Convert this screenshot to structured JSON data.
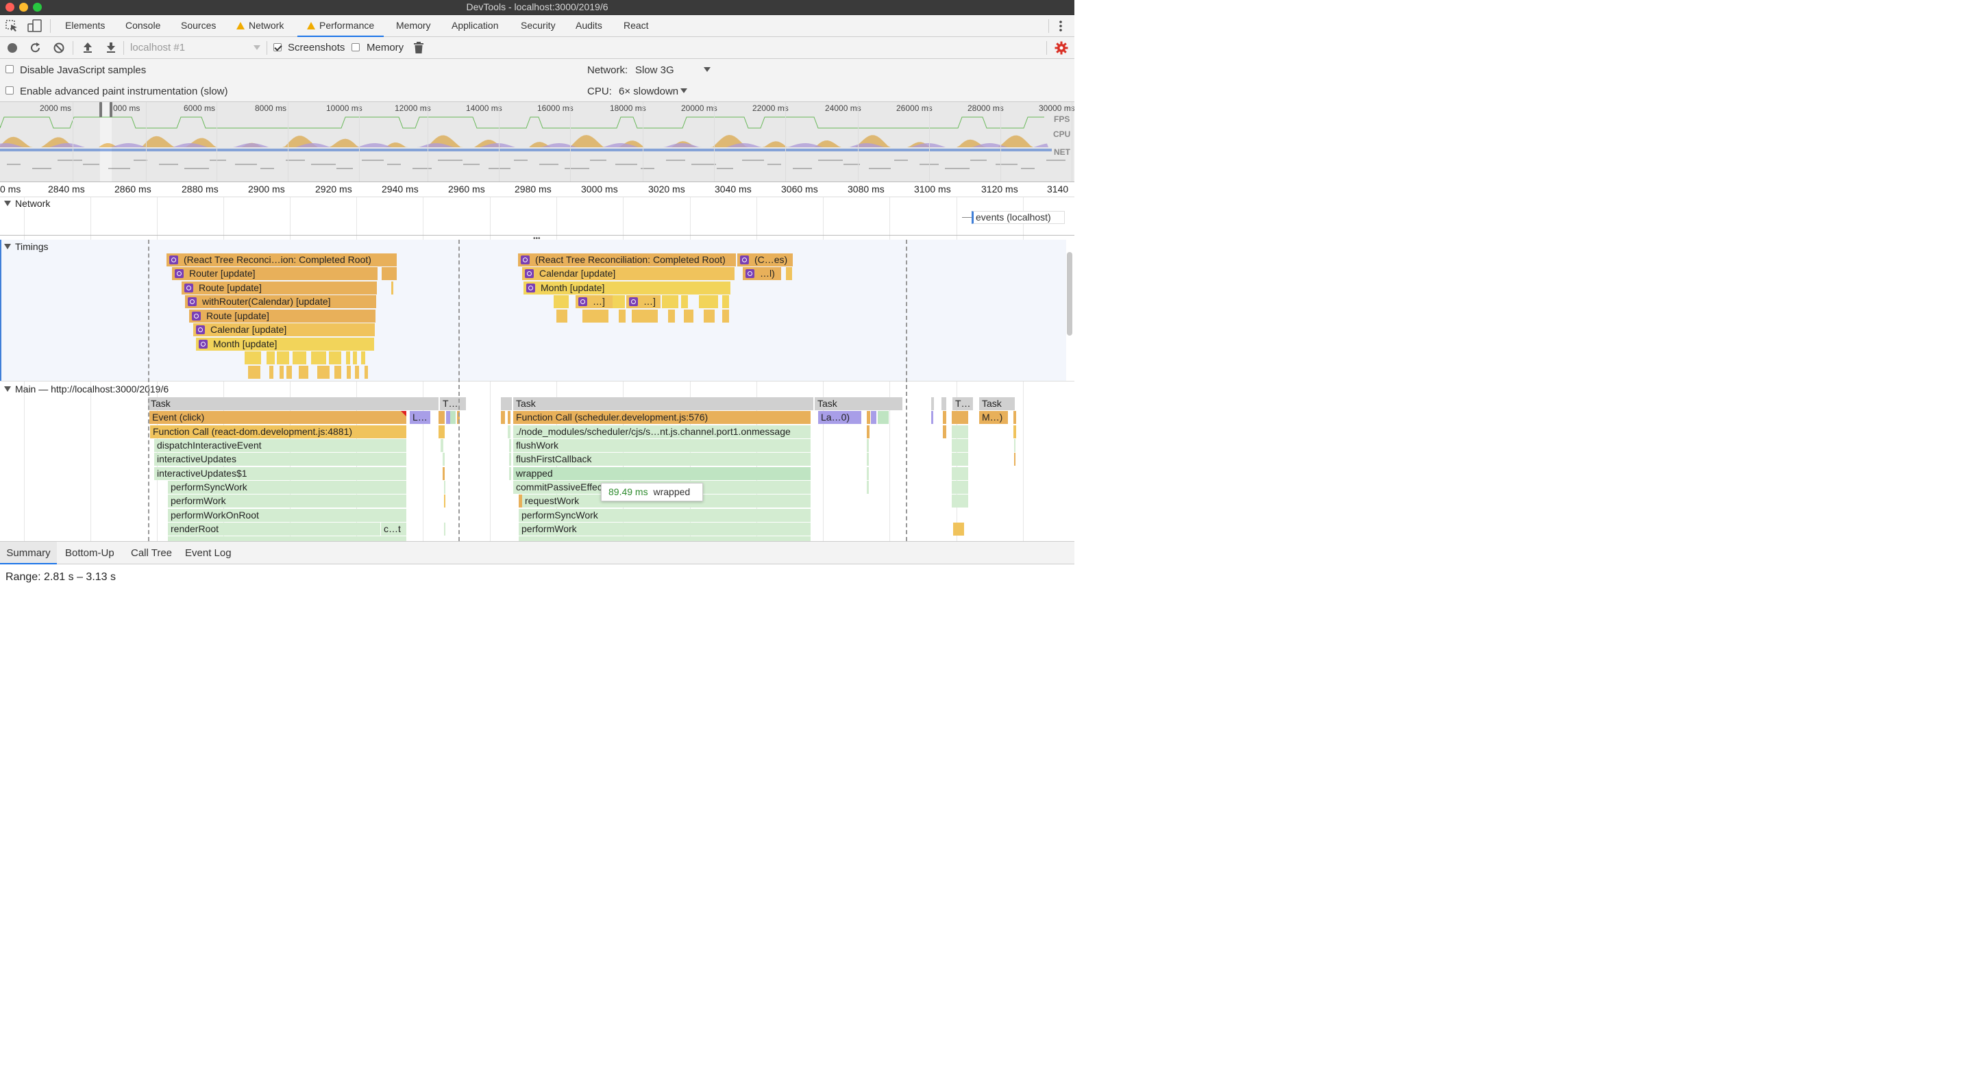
{
  "window": {
    "title": "DevTools - localhost:3000/2019/6"
  },
  "tabs": [
    "Elements",
    "Console",
    "Sources",
    "Network",
    "Performance",
    "Memory",
    "Application",
    "Security",
    "Audits",
    "React"
  ],
  "active_tab": "Performance",
  "toolbar": {
    "profile_select": "localhost #1",
    "screenshots_label": "Screenshots",
    "screenshots_checked": true,
    "memory_label": "Memory",
    "memory_checked": false
  },
  "options": {
    "disable_js_samples": "Disable JavaScript samples",
    "enable_paint": "Enable advanced paint instrumentation (slow)",
    "network_label": "Network:",
    "network_value": "Slow 3G",
    "cpu_label": "CPU:",
    "cpu_value": "6× slowdown"
  },
  "overview": {
    "ticks": [
      "2000 ms",
      "000 ms",
      "6000 ms",
      "8000 ms",
      "10000 ms",
      "12000 ms",
      "14000 ms",
      "16000 ms",
      "18000 ms",
      "20000 ms",
      "22000 ms",
      "24000 ms",
      "26000 ms",
      "28000 ms",
      "30000 ms"
    ],
    "lanes": [
      "FPS",
      "CPU",
      "NET"
    ]
  },
  "ruler": [
    "0 ms",
    "2840 ms",
    "2860 ms",
    "2880 ms",
    "2900 ms",
    "2920 ms",
    "2940 ms",
    "2960 ms",
    "2980 ms",
    "3000 ms",
    "3020 ms",
    "3040 ms",
    "3060 ms",
    "3080 ms",
    "3100 ms",
    "3120 ms",
    "3140"
  ],
  "network_section": {
    "label": "Network",
    "request": "events (localhost)"
  },
  "timings": {
    "label": "Timings",
    "left": [
      "(React Tree Reconci…ion: Completed Root)",
      "Router [update]",
      "Route [update]",
      "withRouter(Calendar) [update]",
      "Route [update]",
      "Calendar [update]",
      "Month [update]"
    ],
    "right": [
      "(React Tree Reconciliation: Completed Root)",
      "(C…es)",
      "Calendar [update]",
      "…l)",
      "Month [update]",
      "…]",
      "…]"
    ]
  },
  "main": {
    "label": "Main — http://localhost:3000/2019/6",
    "left_stack": [
      "Task",
      "Event (click)",
      "Function Call (react-dom.development.js:4881)",
      "dispatchInteractiveEvent",
      "interactiveUpdates",
      "interactiveUpdates$1",
      "performSyncWork",
      "performWork",
      "performWorkOnRoot",
      "renderRoot"
    ],
    "left_misc": {
      "t_task": "T…",
      "l_short": "L…",
      "c_short": "c…t"
    },
    "right_stack": [
      "Task",
      "Function Call (scheduler.development.js:576)",
      "./node_modules/scheduler/cjs/s…nt.js.channel.port1.onmessage",
      "flushWork",
      "flushFirstCallback",
      "wrapped",
      "commitPassiveEffec",
      "requestWork",
      "performSyncWork",
      "performWork"
    ],
    "right_misc": {
      "task2": "Task",
      "la0": "La…0)",
      "t3": "T…",
      "task3": "Task",
      "m_short": "M…)"
    }
  },
  "tooltip": {
    "duration": "89.49 ms",
    "name": "wrapped"
  },
  "bottom_tabs": [
    "Summary",
    "Bottom-Up",
    "Call Tree",
    "Event Log"
  ],
  "active_bottom_tab": "Summary",
  "range": "Range: 2.81 s – 3.13 s",
  "colors": {
    "accent": "#1a73e8",
    "timing_orange": "#e8b05a",
    "timing_yellow": "#f2d45a",
    "js_green": "#d3ecd1",
    "task_gray": "#d0d0d0",
    "react_purple": "#7a3fb4"
  }
}
